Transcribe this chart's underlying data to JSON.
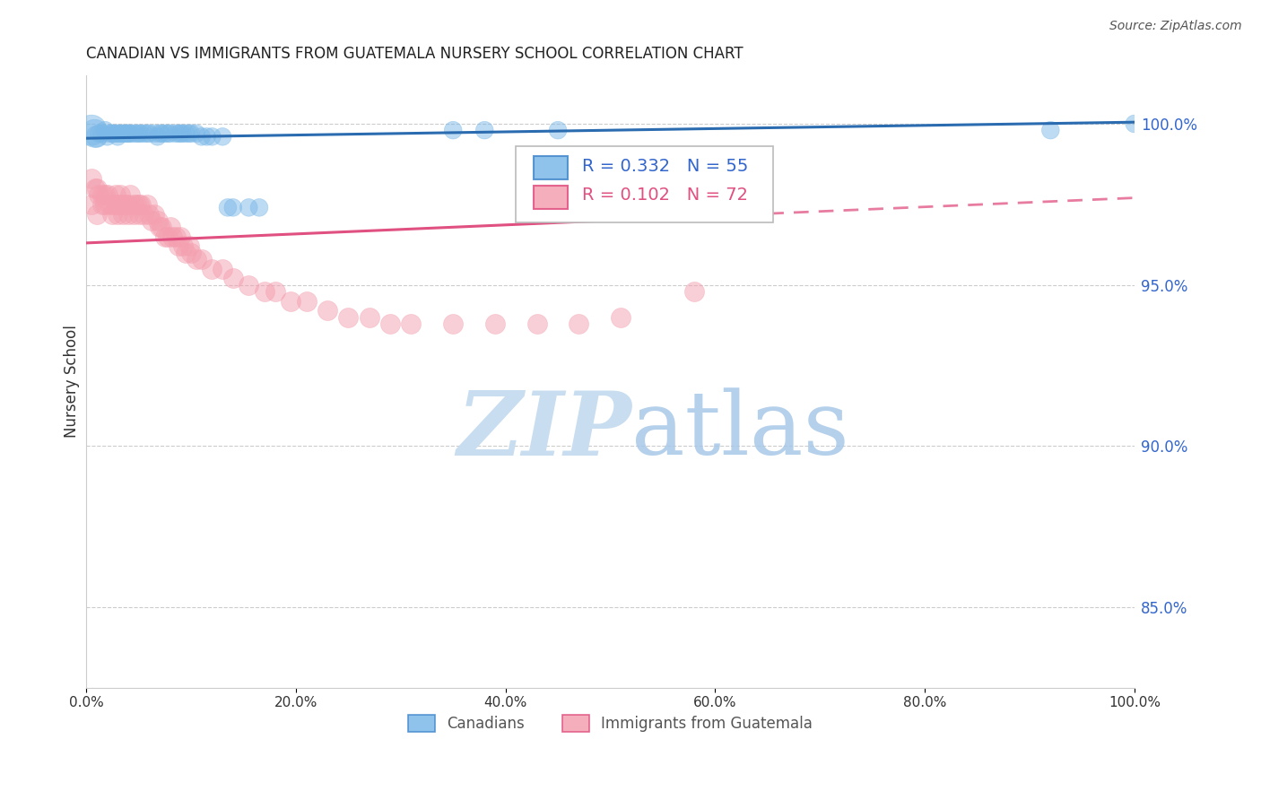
{
  "title": "CANADIAN VS IMMIGRANTS FROM GUATEMALA NURSERY SCHOOL CORRELATION CHART",
  "source": "Source: ZipAtlas.com",
  "ylabel": "Nursery School",
  "y_ticks_right": [
    0.85,
    0.9,
    0.95,
    1.0
  ],
  "y_tick_labels_right": [
    "85.0%",
    "90.0%",
    "95.0%",
    "100.0%"
  ],
  "legend_blue_color": "#7cb9e8",
  "legend_pink_color": "#f4a0b0",
  "blue_line_color": "#2b6cb0",
  "pink_line_color": "#e05080",
  "watermark_zip": "ZIP",
  "watermark_atlas": "atlas",
  "watermark_color": "#ddeeff",
  "canadians_x": [
    0.005,
    0.008,
    0.01,
    0.012,
    0.015,
    0.018,
    0.02,
    0.022,
    0.025,
    0.025,
    0.028,
    0.03,
    0.03,
    0.032,
    0.035,
    0.035,
    0.038,
    0.04,
    0.04,
    0.042,
    0.045,
    0.048,
    0.05,
    0.052,
    0.055,
    0.058,
    0.06,
    0.065,
    0.068,
    0.07,
    0.072,
    0.075,
    0.078,
    0.08,
    0.085,
    0.088,
    0.09,
    0.092,
    0.095,
    0.098,
    0.1,
    0.105,
    0.11,
    0.115,
    0.12,
    0.13,
    0.135,
    0.14,
    0.155,
    0.165,
    0.35,
    0.38,
    0.45,
    0.92,
    1.0
  ],
  "canadians_y": [
    0.998,
    0.997,
    0.996,
    0.997,
    0.997,
    0.998,
    0.996,
    0.997,
    0.997,
    0.997,
    0.997,
    0.996,
    0.997,
    0.997,
    0.997,
    0.997,
    0.997,
    0.997,
    0.997,
    0.997,
    0.997,
    0.997,
    0.997,
    0.997,
    0.997,
    0.997,
    0.997,
    0.997,
    0.996,
    0.997,
    0.997,
    0.997,
    0.997,
    0.997,
    0.997,
    0.997,
    0.997,
    0.997,
    0.997,
    0.997,
    0.997,
    0.997,
    0.996,
    0.996,
    0.996,
    0.996,
    0.974,
    0.974,
    0.974,
    0.974,
    0.998,
    0.998,
    0.998,
    0.998,
    1.0
  ],
  "canadians_sizes": [
    600,
    500,
    300,
    200,
    200,
    200,
    200,
    200,
    200,
    200,
    200,
    200,
    200,
    200,
    200,
    200,
    200,
    200,
    200,
    200,
    200,
    200,
    200,
    200,
    200,
    200,
    200,
    200,
    200,
    200,
    200,
    200,
    200,
    200,
    200,
    200,
    200,
    200,
    200,
    200,
    200,
    200,
    200,
    200,
    200,
    200,
    200,
    200,
    200,
    200,
    200,
    200,
    200,
    200,
    200
  ],
  "guatemala_x": [
    0.005,
    0.005,
    0.008,
    0.01,
    0.01,
    0.012,
    0.015,
    0.015,
    0.018,
    0.018,
    0.02,
    0.022,
    0.025,
    0.025,
    0.028,
    0.028,
    0.03,
    0.03,
    0.032,
    0.032,
    0.035,
    0.035,
    0.038,
    0.04,
    0.04,
    0.042,
    0.045,
    0.045,
    0.048,
    0.05,
    0.05,
    0.052,
    0.055,
    0.058,
    0.06,
    0.062,
    0.065,
    0.068,
    0.07,
    0.072,
    0.075,
    0.078,
    0.08,
    0.082,
    0.085,
    0.088,
    0.09,
    0.092,
    0.095,
    0.098,
    0.1,
    0.105,
    0.11,
    0.12,
    0.13,
    0.14,
    0.155,
    0.17,
    0.18,
    0.195,
    0.21,
    0.23,
    0.25,
    0.27,
    0.29,
    0.31,
    0.35,
    0.39,
    0.43,
    0.47,
    0.51,
    0.58
  ],
  "guatemala_y": [
    0.983,
    0.975,
    0.98,
    0.98,
    0.972,
    0.978,
    0.978,
    0.975,
    0.978,
    0.975,
    0.978,
    0.975,
    0.975,
    0.972,
    0.978,
    0.975,
    0.975,
    0.972,
    0.978,
    0.975,
    0.975,
    0.972,
    0.975,
    0.975,
    0.972,
    0.978,
    0.975,
    0.972,
    0.975,
    0.975,
    0.972,
    0.975,
    0.972,
    0.975,
    0.972,
    0.97,
    0.972,
    0.97,
    0.968,
    0.968,
    0.965,
    0.965,
    0.968,
    0.965,
    0.965,
    0.962,
    0.965,
    0.962,
    0.96,
    0.962,
    0.96,
    0.958,
    0.958,
    0.955,
    0.955,
    0.952,
    0.95,
    0.948,
    0.948,
    0.945,
    0.945,
    0.942,
    0.94,
    0.94,
    0.938,
    0.938,
    0.938,
    0.938,
    0.938,
    0.938,
    0.94,
    0.948
  ]
}
